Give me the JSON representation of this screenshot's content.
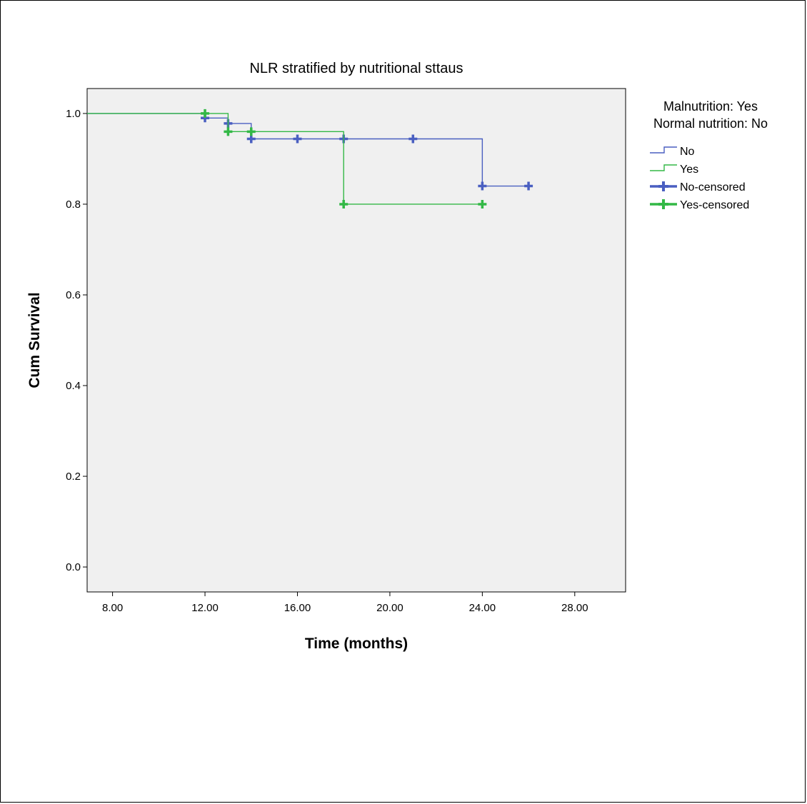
{
  "chart_data": {
    "type": "line",
    "title": "NLR stratified by nutritional sttaus",
    "xlabel": "Time (months)",
    "ylabel": "Cum Survival",
    "xlim": [
      6.9,
      30.2
    ],
    "ylim": [
      -0.055,
      1.055
    ],
    "x_ticks": [
      8,
      12,
      16,
      20,
      24,
      28
    ],
    "x_tick_labels": [
      "8.00",
      "12.00",
      "16.00",
      "20.00",
      "24.00",
      "28.00"
    ],
    "y_ticks": [
      0.0,
      0.2,
      0.4,
      0.6,
      0.8,
      1.0
    ],
    "y_tick_labels": [
      "0.0",
      "0.2",
      "0.4",
      "0.6",
      "0.8",
      "1.0"
    ],
    "legend_title": [
      "Malnutrition: Yes",
      "Normal nutrition: No"
    ],
    "legend_position": "right",
    "grid": false,
    "series": [
      {
        "name": "No",
        "color": "#4a5fc1",
        "censor_label": "No-censored",
        "steps": [
          [
            6.9,
            1.0
          ],
          [
            12,
            0.99
          ],
          [
            13,
            0.978
          ],
          [
            14,
            0.944
          ],
          [
            24,
            0.84
          ],
          [
            26,
            0.84
          ]
        ],
        "censored": [
          [
            12,
            0.99
          ],
          [
            13,
            0.978
          ],
          [
            14,
            0.944
          ],
          [
            16,
            0.944
          ],
          [
            18,
            0.944
          ],
          [
            21,
            0.944
          ],
          [
            24,
            0.84
          ],
          [
            26,
            0.84
          ]
        ]
      },
      {
        "name": "Yes",
        "color": "#33b846",
        "censor_label": "Yes-censored",
        "steps": [
          [
            6.9,
            1.0
          ],
          [
            13,
            0.96
          ],
          [
            18,
            0.8
          ],
          [
            24,
            0.8
          ]
        ],
        "censored": [
          [
            12,
            1.0
          ],
          [
            13,
            0.96
          ],
          [
            14,
            0.96
          ],
          [
            18,
            0.8
          ],
          [
            24,
            0.8
          ]
        ]
      }
    ]
  }
}
